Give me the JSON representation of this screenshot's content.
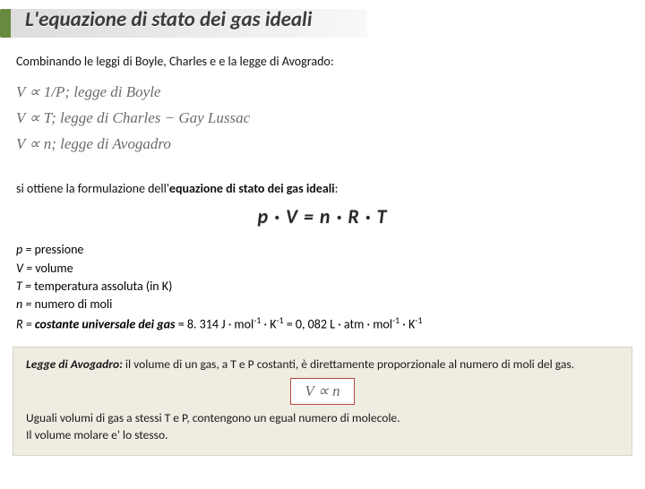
{
  "title": "L'equazione di stato dei gas ideali",
  "intro": "Combinando le leggi di Boyle, Charles e e la legge di Avogrado:",
  "laws": {
    "boyle": "V ∝ 1/P;  legge di Boyle",
    "charles": "V ∝ T;  legge di Charles − Gay Lussac",
    "avogadro": "V ∝ n;  legge di Avogadro"
  },
  "lead2_a": "si ottiene la formulazione dell'",
  "lead2_b": "equazione di stato dei gas ideali",
  "equation": "p · V = n · R · T",
  "defs": {
    "p": "pressione",
    "v": "volume",
    "t": "temperatura assoluta (in K)",
    "n": "numero di moli",
    "r_label": "costante universale dei gas",
    "r_value": " = 8. 314 J · mol",
    "r_tail1": " · K",
    "r_tail2": " = 0, 082 L · atm · mol",
    "r_tail3": " · K"
  },
  "foot": {
    "lead": "Legge di Avogadro:",
    "t1": " il volume di un gas, a T e P costanti, è direttamente proporzionale al numero di moli del gas.",
    "vprop": "V ∝ n",
    "t2": "Uguali volumi di gas a stessi T e P, contengono un egual numero di molecole.",
    "t3": "Il volume molare e' lo stesso."
  },
  "colors": {
    "accent": "#698b3f",
    "footnote_bg": "#efece2",
    "box_border": "#b54640"
  }
}
